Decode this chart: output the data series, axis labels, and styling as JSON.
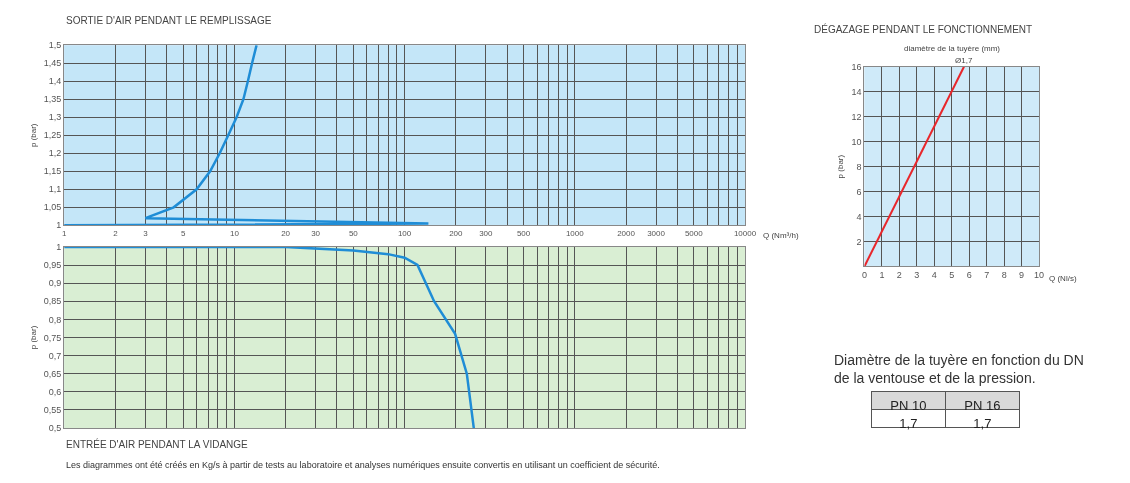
{
  "chart_data": [
    {
      "type": "line",
      "title": "SORTIE D'AIR PENDANT LE REMPLISSAGE",
      "xlabel": "Q (Nm³/h)",
      "ylabel": "p (bar)",
      "log": "x",
      "grid": true,
      "xlim": [
        1,
        10000
      ],
      "ylim": [
        1,
        1.5
      ],
      "xticks": [
        1,
        2,
        3,
        {
          "value": 4,
          "label": null
        },
        5,
        {
          "value": 6,
          "label": null
        },
        {
          "value": 7,
          "label": null
        },
        {
          "value": 8,
          "label": null
        },
        {
          "value": 9,
          "label": null
        },
        10,
        20,
        30,
        {
          "value": 40,
          "label": null
        },
        50,
        {
          "value": 60,
          "label": null
        },
        {
          "value": 70,
          "label": null
        },
        {
          "value": 80,
          "label": null
        },
        {
          "value": 90,
          "label": null
        },
        100,
        200,
        300,
        {
          "value": 400,
          "label": null
        },
        500,
        {
          "value": 600,
          "label": null
        },
        {
          "value": 700,
          "label": null
        },
        {
          "value": 800,
          "label": null
        },
        {
          "value": 900,
          "label": null
        },
        1000,
        2000,
        3000,
        {
          "value": 4000,
          "label": null
        },
        5000,
        {
          "value": 6000,
          "label": null
        },
        {
          "value": 7000,
          "label": null
        },
        {
          "value": 8000,
          "label": null
        },
        {
          "value": 9000,
          "label": null
        },
        10000
      ],
      "yticks": [
        1,
        {
          "value": 1.05,
          "label": "1,05"
        },
        {
          "value": 1.1,
          "label": "1,1"
        },
        {
          "value": 1.15,
          "label": "1,15"
        },
        {
          "value": 1.2,
          "label": "1,2"
        },
        {
          "value": 1.25,
          "label": "1,25"
        },
        {
          "value": 1.3,
          "label": "1,3"
        },
        {
          "value": 1.35,
          "label": "1,35"
        },
        {
          "value": 1.4,
          "label": "1,4"
        },
        {
          "value": 1.45,
          "label": "1,45"
        },
        {
          "value": 1.5,
          "label": "1,5"
        }
      ],
      "series": [
        {
          "color": "#1f8dd6",
          "x": [
            1,
            138,
            3,
            4.4,
            6.0,
            7.2,
            8.2,
            9.2,
            10.3,
            11.3,
            12,
            12.7,
            13.5
          ],
          "values": [
            1.0,
            1.005,
            1.02,
            1.05,
            1.1,
            1.15,
            1.2,
            1.25,
            1.3,
            1.35,
            1.4,
            1.45,
            1.5
          ]
        }
      ]
    },
    {
      "type": "line",
      "title": "ENTRÉE D'AIR PENDANT LA VIDANGE",
      "ylabel": "p (bar)",
      "log": "x",
      "grid": true,
      "tick_labels": "y",
      "xlim": [
        1,
        10000
      ],
      "ylim": [
        0.5,
        1
      ],
      "annotations": [
        "Les diagrammes ont été créés en Kg/s à partir de tests au laboratoire et analyses numériques ensuite convertis en utilisant un coefficient de sécurité."
      ],
      "xticks": [
        1,
        2,
        3,
        {
          "value": 4,
          "label": null
        },
        5,
        {
          "value": 6,
          "label": null
        },
        {
          "value": 7,
          "label": null
        },
        {
          "value": 8,
          "label": null
        },
        {
          "value": 9,
          "label": null
        },
        10,
        20,
        30,
        {
          "value": 40,
          "label": null
        },
        50,
        {
          "value": 60,
          "label": null
        },
        {
          "value": 70,
          "label": null
        },
        {
          "value": 80,
          "label": null
        },
        {
          "value": 90,
          "label": null
        },
        100,
        200,
        300,
        {
          "value": 400,
          "label": null
        },
        500,
        {
          "value": 600,
          "label": null
        },
        {
          "value": 700,
          "label": null
        },
        {
          "value": 800,
          "label": null
        },
        {
          "value": 900,
          "label": null
        },
        1000,
        2000,
        3000,
        {
          "value": 4000,
          "label": null
        },
        5000,
        {
          "value": 6000,
          "label": null
        },
        {
          "value": 7000,
          "label": null
        },
        {
          "value": 8000,
          "label": null
        },
        {
          "value": 9000,
          "label": null
        },
        10000
      ],
      "yticks": [
        {
          "value": 0.5,
          "label": "0,5"
        },
        {
          "value": 0.55,
          "label": "0,55"
        },
        {
          "value": 0.6,
          "label": "0,6"
        },
        {
          "value": 0.65,
          "label": "0,65"
        },
        {
          "value": 0.7,
          "label": "0,7"
        },
        {
          "value": 0.75,
          "label": "0,75"
        },
        {
          "value": 0.8,
          "label": "0,8"
        },
        {
          "value": 0.85,
          "label": "0,85"
        },
        {
          "value": 0.9,
          "label": "0,9"
        },
        {
          "value": 0.95,
          "label": "0,95"
        },
        1
      ],
      "series": [
        {
          "color": "#1f8dd6",
          "x": [
            1,
            20,
            50,
            80,
            100,
            119,
            149,
            198,
            232,
            255
          ],
          "values": [
            1.0,
            1.0,
            0.99,
            0.98,
            0.97,
            0.95,
            0.85,
            0.76,
            0.65,
            0.5
          ]
        }
      ]
    },
    {
      "type": "line",
      "title": "DÉGAZAGE PENDANT LE FONCTIONNEMENT",
      "subtitle": "diamètre de la tuyère (mm)",
      "xlabel": "Q (Nl/s)",
      "ylabel": "p (bar)",
      "grid": true,
      "xlim": [
        0,
        10
      ],
      "ylim": [
        0,
        16
      ],
      "annotations": [
        {
          "text": "Ø1,7",
          "x": 5.7,
          "y": 16
        }
      ],
      "xticks": [
        0,
        1,
        2,
        3,
        4,
        5,
        6,
        7,
        8,
        9,
        10
      ],
      "yticks": [
        {
          "value": 0,
          "label": null
        },
        2,
        4,
        6,
        8,
        10,
        12,
        14,
        16
      ],
      "series": [
        {
          "color": "#e8262b",
          "x": [
            0,
            5.7
          ],
          "values": [
            0,
            16
          ]
        }
      ]
    },
    {
      "type": "other",
      "title": "Diamètre de la tuyère en fonction du DN de la ventouse et de la pression.",
      "categories": [
        "PN 10",
        "PN 16"
      ],
      "value_labels": [
        "1,7",
        "1,7"
      ]
    }
  ]
}
